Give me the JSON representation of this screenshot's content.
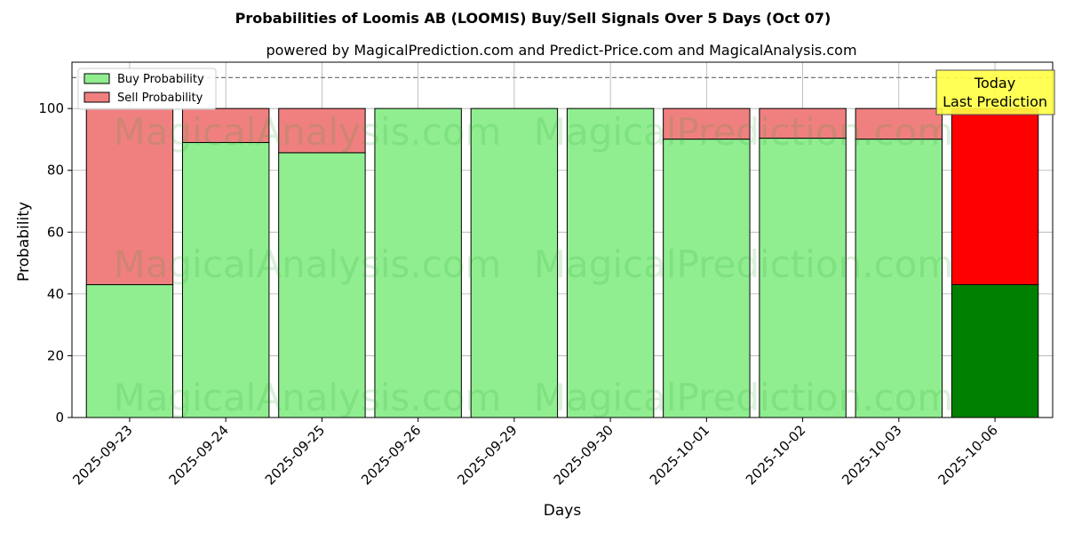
{
  "chart_data": {
    "type": "bar",
    "stacked": true,
    "title": "Probabilities of Loomis AB (LOOMIS) Buy/Sell Signals Over 5 Days (Oct 07)",
    "subtitle": "powered by MagicalPrediction.com and Predict-Price.com and MagicalAnalysis.com",
    "xlabel": "Days",
    "ylabel": "Probability",
    "ylim": [
      0,
      115
    ],
    "yticks": [
      0,
      20,
      40,
      60,
      80,
      100
    ],
    "grid": true,
    "legend_position": "top-left",
    "reference_line": {
      "y": 110,
      "style": "dashed"
    },
    "categories": [
      "2025-09-23",
      "2025-09-24",
      "2025-09-25",
      "2025-09-26",
      "2025-09-29",
      "2025-09-30",
      "2025-10-01",
      "2025-10-02",
      "2025-10-03",
      "2025-10-06"
    ],
    "series": [
      {
        "name": "Buy Probability",
        "color": "#90ee90",
        "values": [
          43,
          89,
          85.7,
          100,
          100,
          100,
          90.1,
          90.4,
          90.1,
          43
        ]
      },
      {
        "name": "Sell Probability",
        "color": "#f08080",
        "values": [
          57,
          11,
          14.3,
          0,
          0,
          0,
          9.9,
          9.6,
          9.9,
          57
        ]
      }
    ],
    "highlight": {
      "index": 9,
      "buy_color": "#008000",
      "sell_color": "#ff0000"
    },
    "annotation": {
      "lines": [
        "Today",
        "Last Prediction"
      ],
      "color": "#ffff44"
    },
    "watermarks": [
      "MagicalAnalysis.com",
      "MagicalPrediction.com"
    ]
  }
}
